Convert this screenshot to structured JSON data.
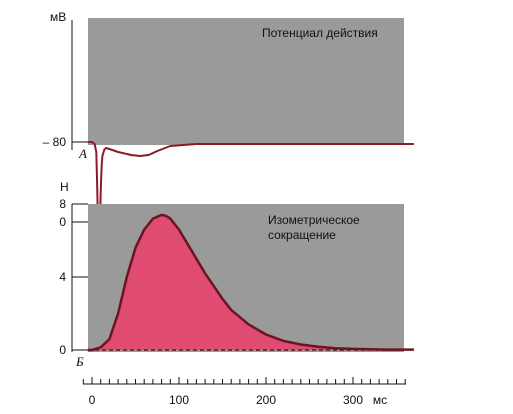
{
  "chart_data": [
    {
      "id": "A",
      "type": "line",
      "panel_label": "А",
      "title": "Потенциал действия",
      "ylabel": "мВ",
      "ylim": [
        -80,
        30
      ],
      "yticks": [
        {
          "value": 0,
          "label": "0"
        },
        {
          "value": -80,
          "label": "– 80"
        }
      ],
      "xlim": [
        -5,
        370
      ],
      "line_color": "#8b1a2a",
      "background": "#9a9a9a",
      "series": [
        {
          "x": [
            -5,
            0,
            3,
            5,
            6,
            7,
            8,
            9,
            10,
            11,
            12,
            14,
            16,
            20,
            30,
            45,
            55,
            65,
            75,
            90,
            120,
            370
          ],
          "y": [
            -80,
            -80,
            -78,
            -70,
            -35,
            10,
            18,
            8,
            -30,
            -55,
            -66,
            -72,
            -74,
            -73,
            -70,
            -67,
            -66,
            -67,
            -71,
            -76,
            -78,
            -78
          ]
        }
      ]
    },
    {
      "id": "B",
      "type": "area",
      "panel_label": "Б",
      "title_lines": [
        "Изометрическое",
        "сокращение"
      ],
      "ylabel": "Н",
      "ylim": [
        0,
        8
      ],
      "yticks": [
        {
          "value": 0,
          "label": "0"
        },
        {
          "value": 4,
          "label": "4"
        },
        {
          "value": 8,
          "label": "8"
        }
      ],
      "xlim": [
        -5,
        370
      ],
      "xlabel": "мс",
      "xticks": [
        {
          "value": 0,
          "label": "0"
        },
        {
          "value": 100,
          "label": "100"
        },
        {
          "value": 200,
          "label": "200"
        },
        {
          "value": 300,
          "label": "300"
        }
      ],
      "line_color": "#6b1522",
      "fill_color": "#e8426e",
      "background": "#9a9a9a",
      "series": [
        {
          "x": [
            -5,
            0,
            10,
            20,
            30,
            40,
            50,
            60,
            70,
            80,
            85,
            90,
            100,
            110,
            120,
            130,
            140,
            150,
            160,
            180,
            200,
            220,
            240,
            260,
            280,
            300,
            320,
            340,
            370
          ],
          "y": [
            0,
            0,
            0.15,
            0.6,
            2.0,
            4.0,
            5.6,
            6.6,
            7.2,
            7.4,
            7.35,
            7.2,
            6.6,
            5.8,
            5.0,
            4.2,
            3.5,
            2.8,
            2.2,
            1.4,
            0.85,
            0.5,
            0.3,
            0.18,
            0.1,
            0.06,
            0.04,
            0.02,
            0.02
          ]
        }
      ]
    }
  ]
}
